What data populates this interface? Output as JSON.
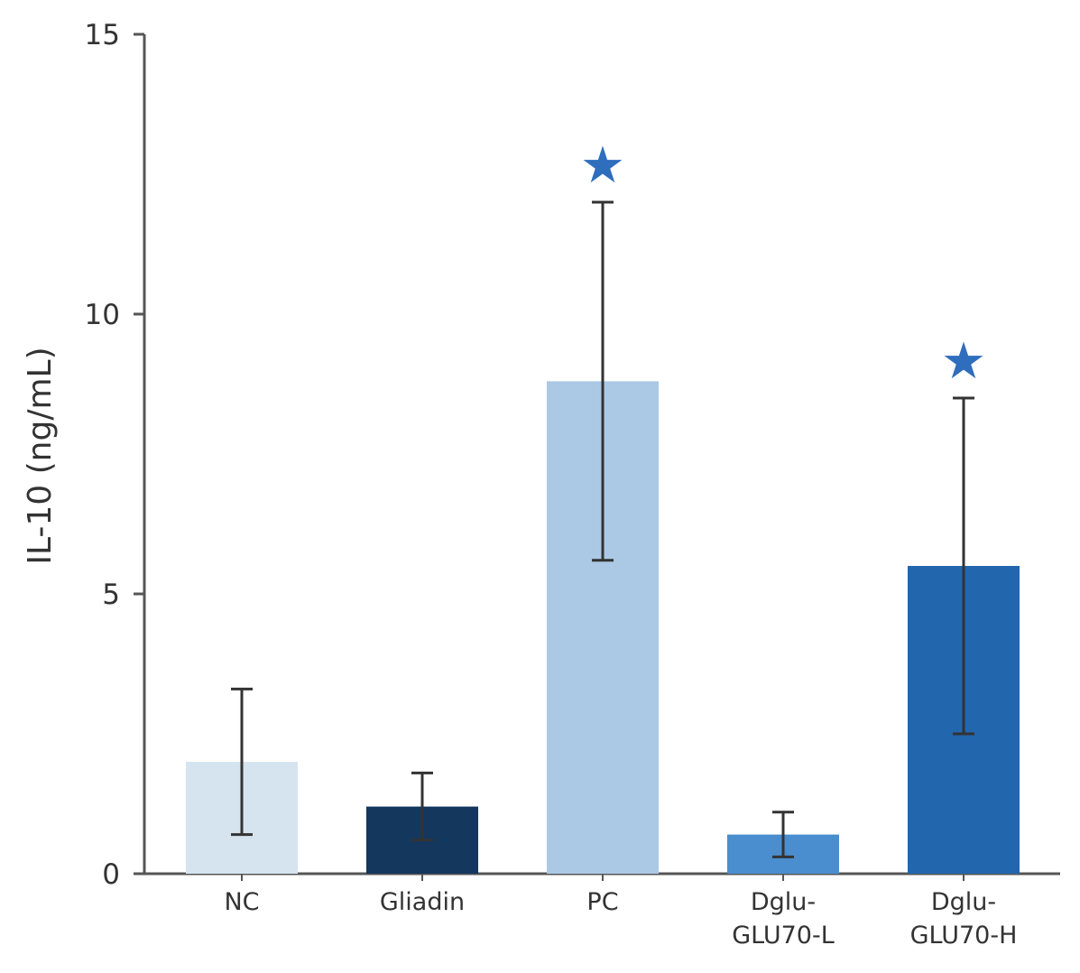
{
  "chart_data": {
    "type": "bar",
    "title": "",
    "xlabel": "",
    "ylabel": "IL-10 (ng/mL)",
    "ylim": [
      0,
      15
    ],
    "yticks": [
      "0",
      "5",
      "10",
      "15"
    ],
    "grid": false,
    "legend": "none",
    "categories": [
      [
        "NC"
      ],
      [
        "Gliadin"
      ],
      [
        "PC"
      ],
      [
        "Dglu-",
        "GLU70-L"
      ],
      [
        "Dglu-",
        "GLU70-H"
      ]
    ],
    "values": [
      2.0,
      1.2,
      8.8,
      0.7,
      5.5
    ],
    "error_low": [
      0.7,
      0.6,
      5.6,
      0.3,
      2.5
    ],
    "error_high": [
      3.3,
      1.8,
      12.0,
      1.1,
      8.5
    ],
    "colors": [
      "#d6e4f0",
      "#14375e",
      "#abc9e5",
      "#4a8ecf",
      "#2266ae"
    ],
    "significance": [
      false,
      false,
      true,
      false,
      true
    ],
    "significance_symbol": "★",
    "significance_color": "#2f6dbd",
    "axis_color": "#555555",
    "errorbar_color": "#333333"
  }
}
